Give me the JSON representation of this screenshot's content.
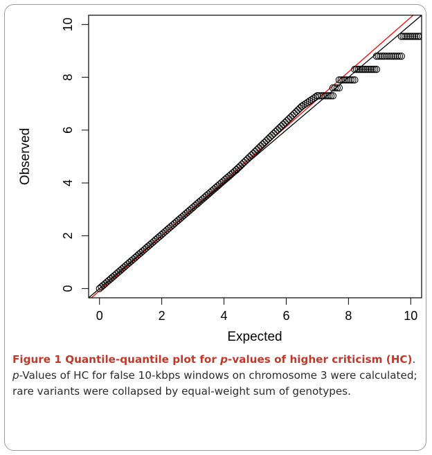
{
  "chart_data": {
    "type": "scatter",
    "xlabel": "Expected",
    "ylabel": "Observed",
    "xlim": [
      -0.35,
      10.35
    ],
    "ylim": [
      -0.35,
      10.35
    ],
    "x_ticks": [
      "0",
      "2",
      "4",
      "6",
      "8",
      "10"
    ],
    "y_ticks": [
      "0",
      "2",
      "4",
      "6",
      "8",
      "10"
    ],
    "grid": false,
    "reference_lines": [
      {
        "color": "#000000",
        "slope": 1,
        "intercept": 0
      },
      {
        "color": "#ff0000",
        "slope": 1.035,
        "intercept": -0.08
      }
    ],
    "points": [
      {
        "x_start": 0.0,
        "x_end": 4.4,
        "y_start": 0.0,
        "y_end": 4.5,
        "kind": "continuous"
      },
      {
        "x_start": 4.4,
        "x_end": 6.5,
        "y_start": 4.5,
        "y_end": 6.9,
        "kind": "continuous"
      },
      {
        "x_start": 6.5,
        "x_end": 7.0,
        "y_start": 6.9,
        "y_end": 7.3,
        "kind": "continuous"
      },
      {
        "x_start": 7.0,
        "x_end": 7.5,
        "y_value": 7.3,
        "kind": "plateau"
      },
      {
        "x_start": 7.5,
        "x_end": 7.7,
        "y_value": 7.6,
        "kind": "plateau"
      },
      {
        "x_start": 7.7,
        "x_end": 8.2,
        "y_value": 7.9,
        "kind": "plateau"
      },
      {
        "x_start": 8.2,
        "x_end": 8.9,
        "y_value": 8.3,
        "kind": "plateau"
      },
      {
        "x_start": 8.9,
        "x_end": 9.7,
        "y_value": 8.8,
        "kind": "plateau"
      },
      {
        "x_start": 9.7,
        "x_end": 10.3,
        "y_value": 9.55,
        "kind": "plateau"
      }
    ],
    "marker_color": "#000000"
  },
  "caption": {
    "title_part1": "Figure 1 Quantile-quantile plot for ",
    "title_p": "p",
    "title_part2": "-values of higher criticism (HC)",
    "body_p": "p",
    "body_text": "-Values of HC for false 10-kbps windows on chromosome 3 were calculated; rare variants were collapsed by equal-weight sum of genotypes."
  }
}
